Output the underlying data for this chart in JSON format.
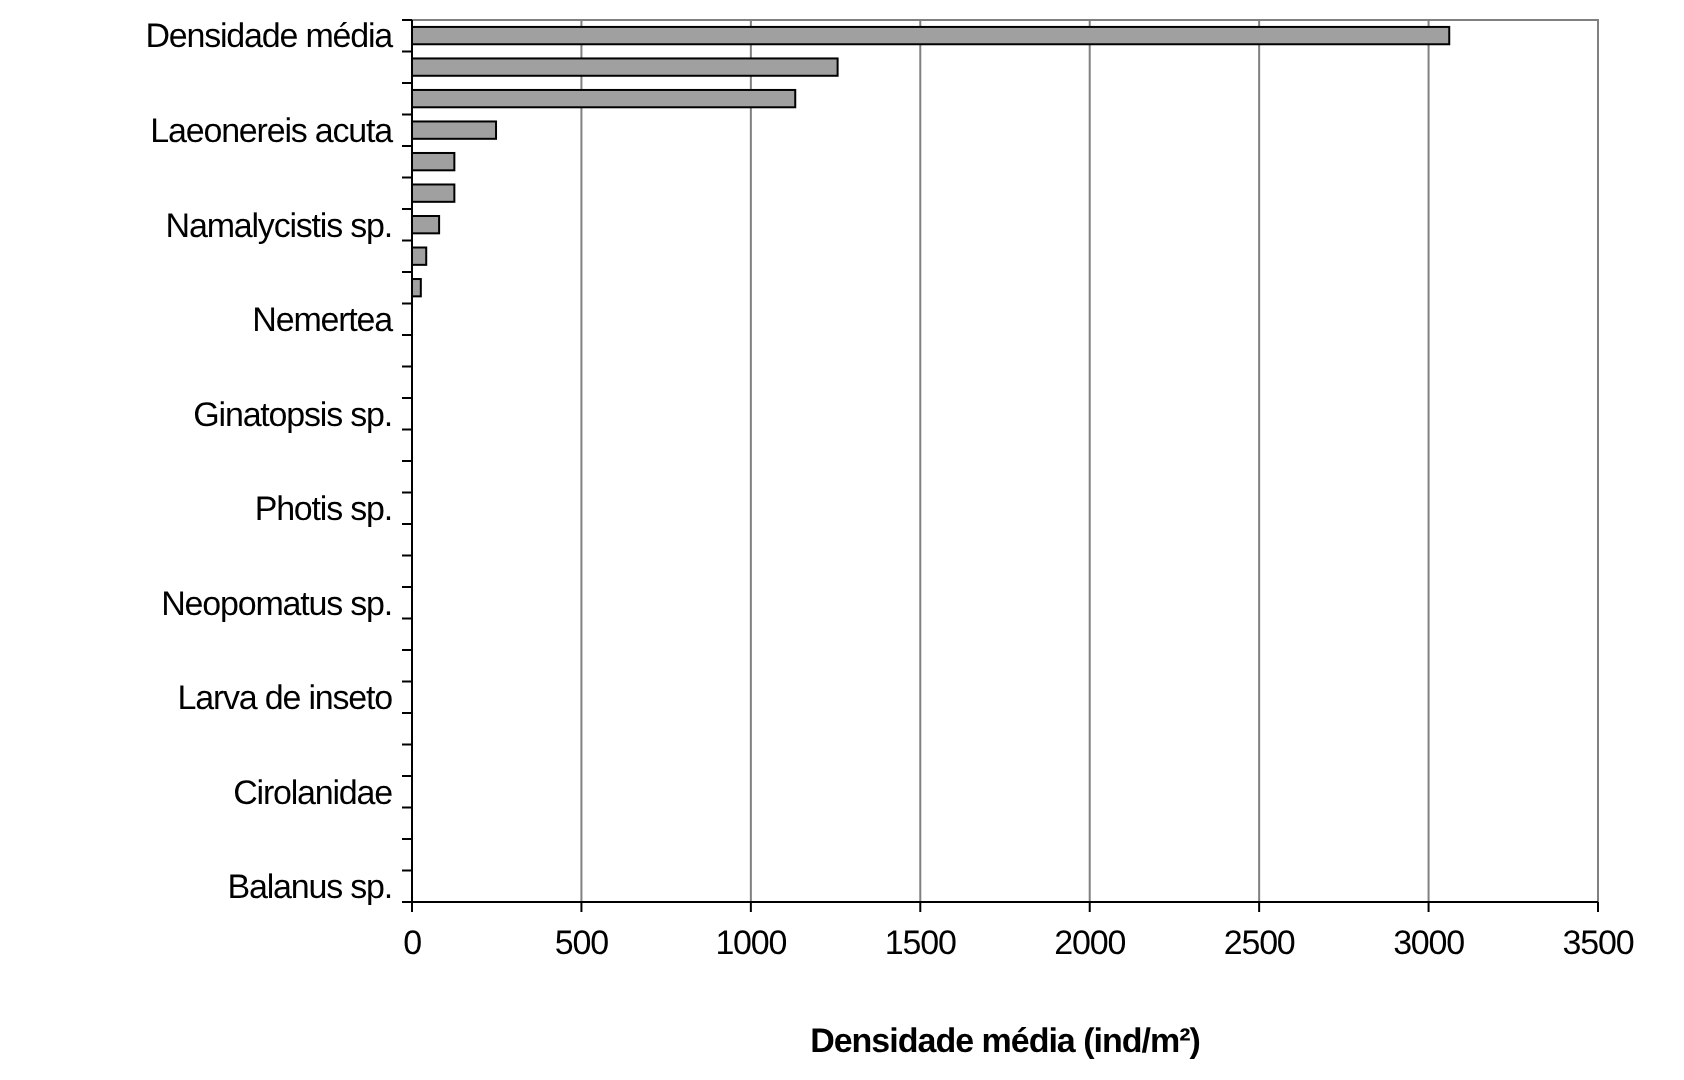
{
  "chart_data": {
    "type": "bar",
    "orientation": "horizontal",
    "xlabel": "Densidade média (ind/m²)",
    "categories": [
      "Densidade média",
      null,
      null,
      "Laeonereis acuta",
      null,
      null,
      "Namalycistis sp.",
      null,
      null,
      "Nemertea",
      null,
      null,
      "Ginatopsis sp.",
      null,
      null,
      "Photis sp.",
      null,
      null,
      "Neopomatus sp.",
      null,
      null,
      "Larva de inseto",
      null,
      null,
      "Cirolanidae",
      null,
      null,
      "Balanus sp."
    ],
    "values": [
      3061,
      1256,
      1131,
      248,
      125,
      125,
      80,
      42,
      26,
      0,
      0,
      0,
      0,
      0,
      0,
      0,
      0,
      0,
      0,
      0,
      0,
      0,
      0,
      0,
      0,
      0,
      0,
      0
    ],
    "color": "#a0a0a0",
    "xlim": [
      0,
      3500
    ],
    "xticks": [
      0,
      500,
      1000,
      1500,
      2000,
      2500,
      3000,
      3500
    ],
    "grid": "x"
  }
}
